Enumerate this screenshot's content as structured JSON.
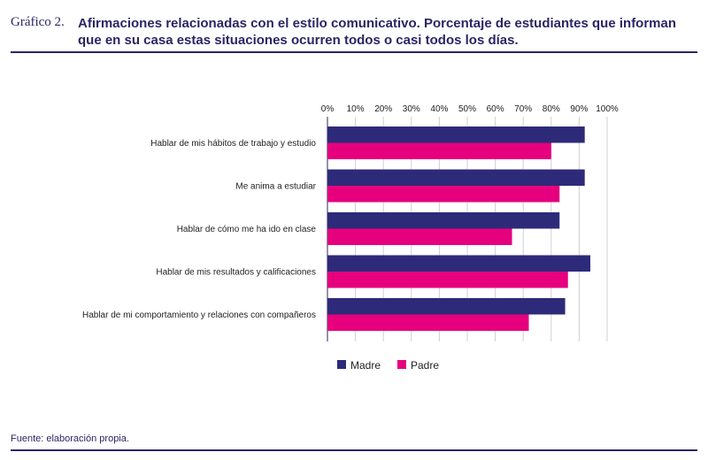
{
  "header": {
    "label": "Gráfico 2.",
    "title": "Afirmaciones relacionadas con el estilo comunicativo. Porcentaje de estudiantes que informan que en su casa estas situaciones ocurren todos o casi todos los días."
  },
  "source": "Fuente: elaboración propia.",
  "colors": {
    "madre": "#2e2a7a",
    "padre": "#e6007e",
    "grid": "#d0d0d0",
    "axis": "#2b2565"
  },
  "chart_data": {
    "type": "bar",
    "orientation": "horizontal",
    "xlim": [
      0,
      100
    ],
    "x_ticks": [
      "0%",
      "10%",
      "20%",
      "30%",
      "40%",
      "50%",
      "60%",
      "70%",
      "80%",
      "90%",
      "100%"
    ],
    "categories": [
      "Hablar de mis hábitos de trabajo y estudio",
      "Me anima a estudiar",
      "Hablar de cómo me ha ido en clase",
      "Hablar de mis resultados y calificaciones",
      "Hablar de mi comportamiento y relaciones con compañeros"
    ],
    "series": [
      {
        "name": "Madre",
        "values": [
          92,
          92,
          83,
          94,
          85
        ]
      },
      {
        "name": "Padre",
        "values": [
          80,
          83,
          66,
          86,
          72
        ]
      }
    ],
    "legend_position": "bottom",
    "grid": true
  }
}
